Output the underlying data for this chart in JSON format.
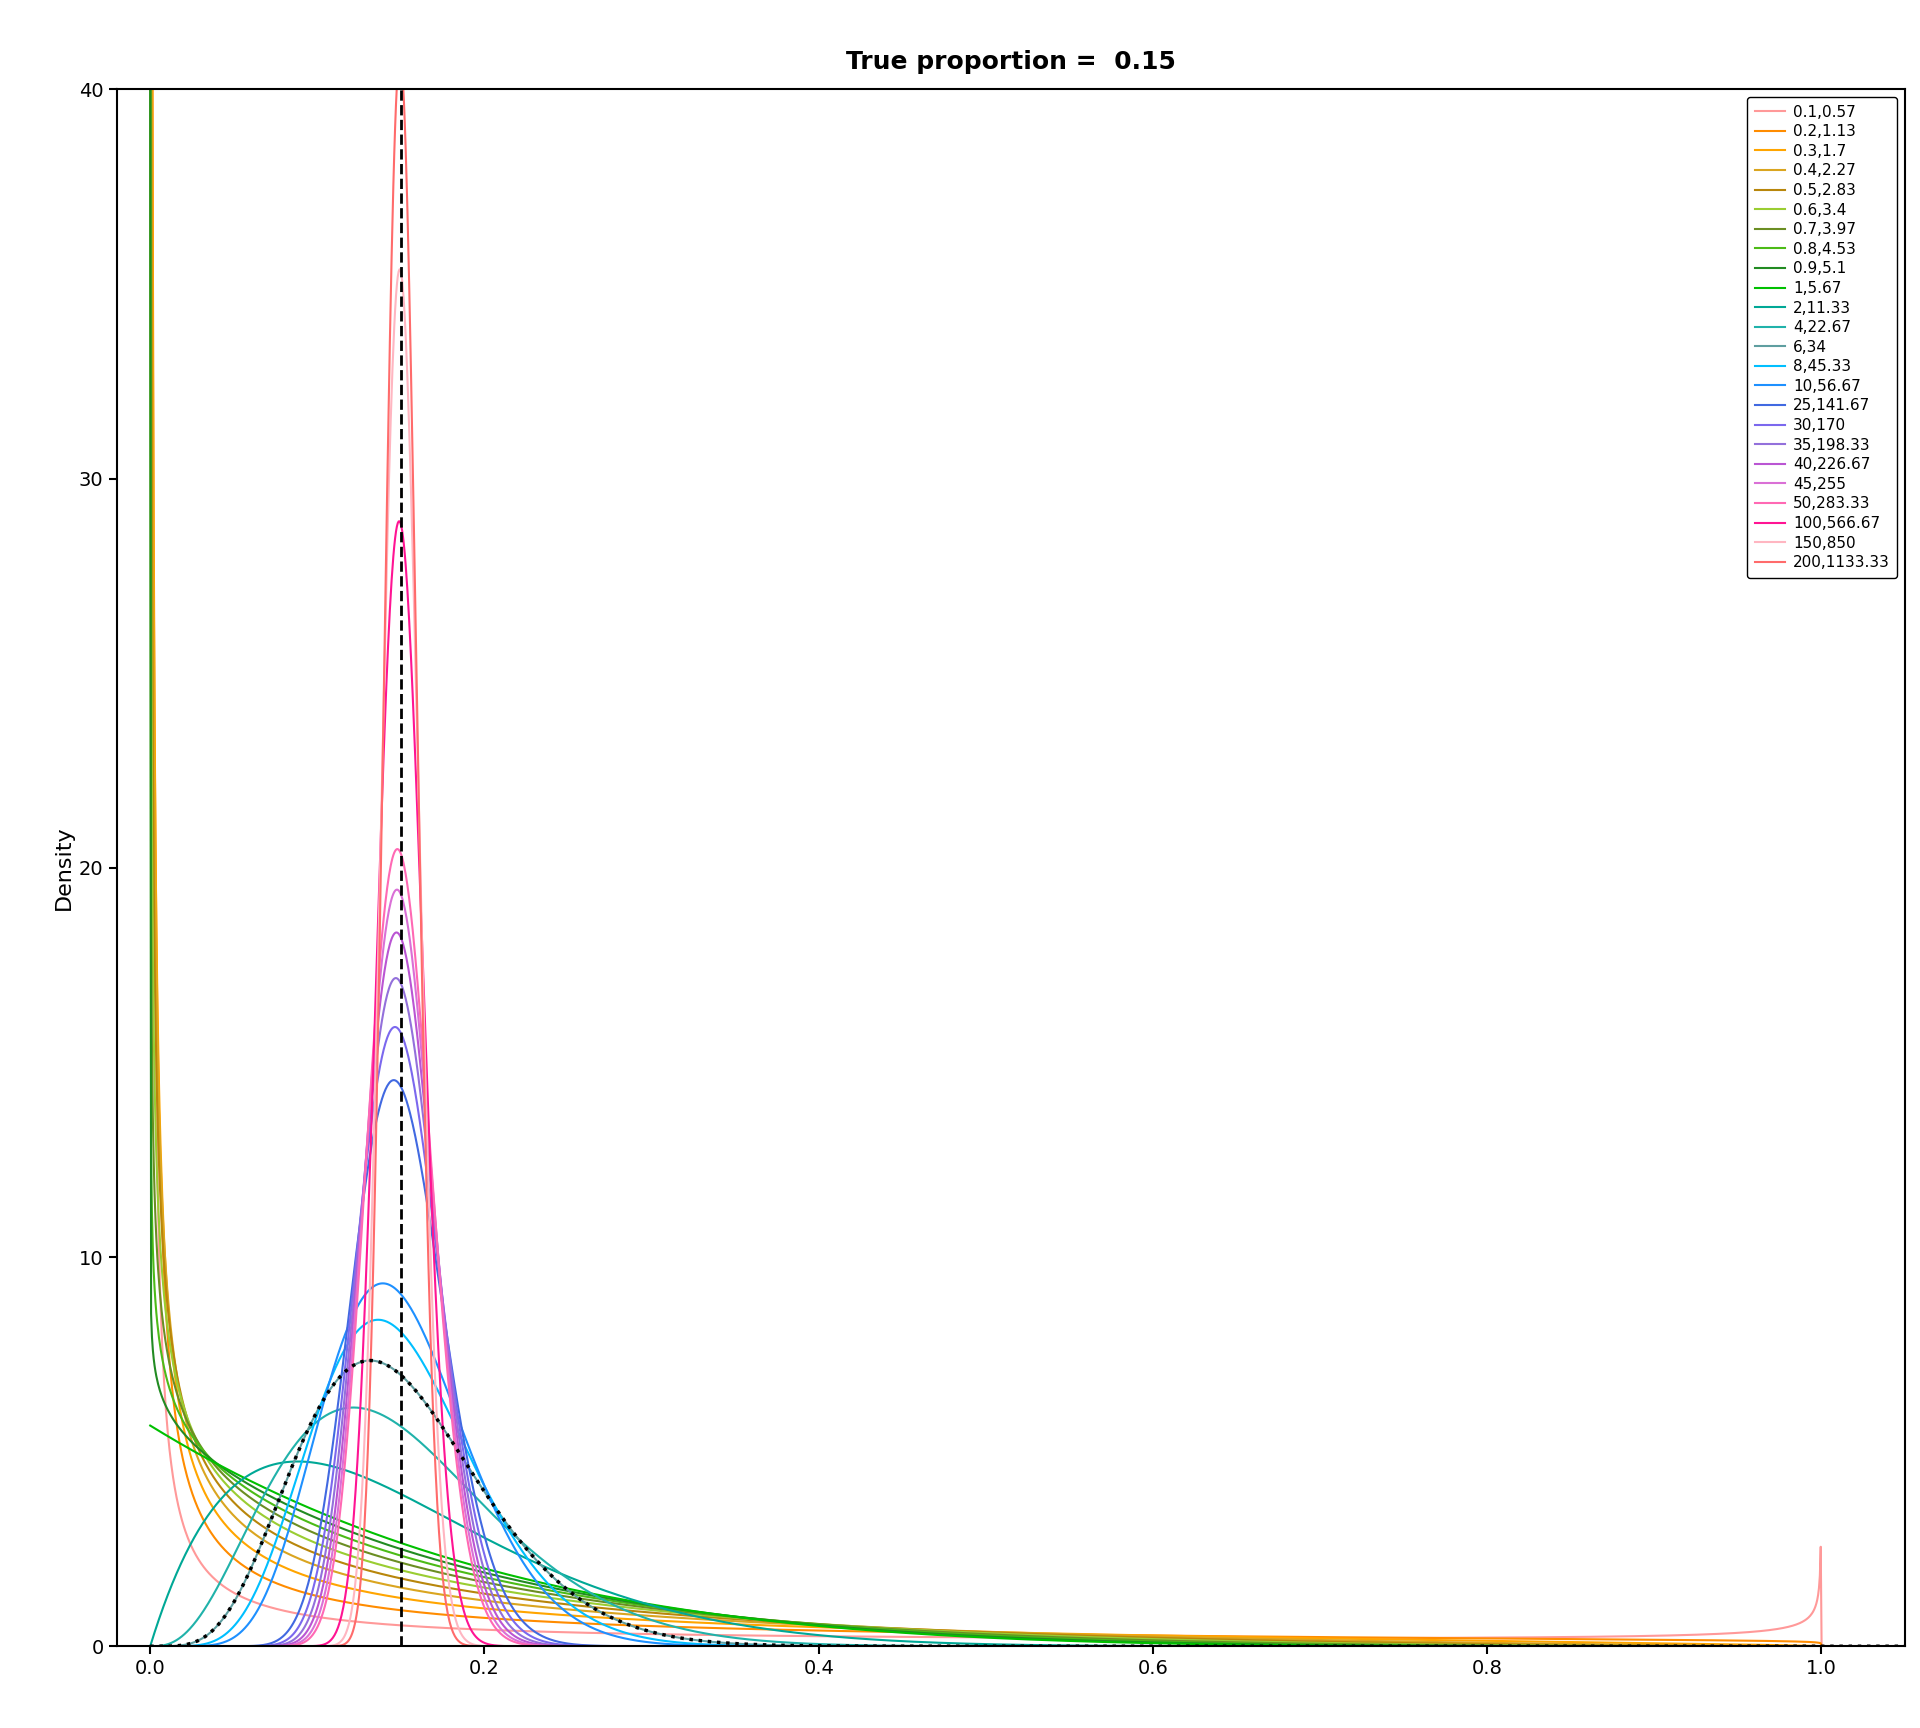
{
  "title": "True proportion =  0.15",
  "ylabel": "Density",
  "xlabel": "",
  "true_proportion": 0.15,
  "xlim": [
    -0.02,
    1.05
  ],
  "ylim": [
    -0.5,
    40
  ],
  "legend_entries": [
    {
      "alpha": 0.1,
      "beta": 0.57,
      "label": "0.1,0.57"
    },
    {
      "alpha": 0.2,
      "beta": 1.13,
      "label": "0.2,1.13"
    },
    {
      "alpha": 0.3,
      "beta": 1.7,
      "label": "0.3,1.7"
    },
    {
      "alpha": 0.4,
      "beta": 2.27,
      "label": "0.4,2.27"
    },
    {
      "alpha": 0.5,
      "beta": 2.83,
      "label": "0.5,2.83"
    },
    {
      "alpha": 0.6,
      "beta": 3.4,
      "label": "0.6,3.4"
    },
    {
      "alpha": 0.7,
      "beta": 3.97,
      "label": "0.7,3.97"
    },
    {
      "alpha": 0.8,
      "beta": 4.53,
      "label": "0.8,4.53"
    },
    {
      "alpha": 0.9,
      "beta": 5.1,
      "label": "0.9,5.1"
    },
    {
      "alpha": 1.0,
      "beta": 5.67,
      "label": "1,5.67"
    },
    {
      "alpha": 2.0,
      "beta": 11.33,
      "label": "2,11.33"
    },
    {
      "alpha": 4.0,
      "beta": 22.67,
      "label": "4,22.67"
    },
    {
      "alpha": 6.0,
      "beta": 34.0,
      "label": "6,34"
    },
    {
      "alpha": 8.0,
      "beta": 45.33,
      "label": "8,45.33"
    },
    {
      "alpha": 10.0,
      "beta": 56.67,
      "label": "10,56.67"
    },
    {
      "alpha": 25.0,
      "beta": 141.67,
      "label": "25,141.67"
    },
    {
      "alpha": 30.0,
      "beta": 170.0,
      "label": "30,170"
    },
    {
      "alpha": 35.0,
      "beta": 198.33,
      "label": "35,198.33"
    },
    {
      "alpha": 40.0,
      "beta": 226.67,
      "label": "40,226.67"
    },
    {
      "alpha": 45.0,
      "beta": 255.0,
      "label": "45,255"
    },
    {
      "alpha": 50.0,
      "beta": 283.33,
      "label": "50,283.33"
    },
    {
      "alpha": 100.0,
      "beta": 566.67,
      "label": "100,566.67"
    },
    {
      "alpha": 150.0,
      "beta": 850.0,
      "label": "150,850"
    },
    {
      "alpha": 200.0,
      "beta": 1133.33,
      "label": "200,1133.33"
    }
  ],
  "background_color": "#ffffff",
  "title_fontsize": 18,
  "axis_fontsize": 16,
  "tick_fontsize": 14,
  "legend_fontsize": 11
}
